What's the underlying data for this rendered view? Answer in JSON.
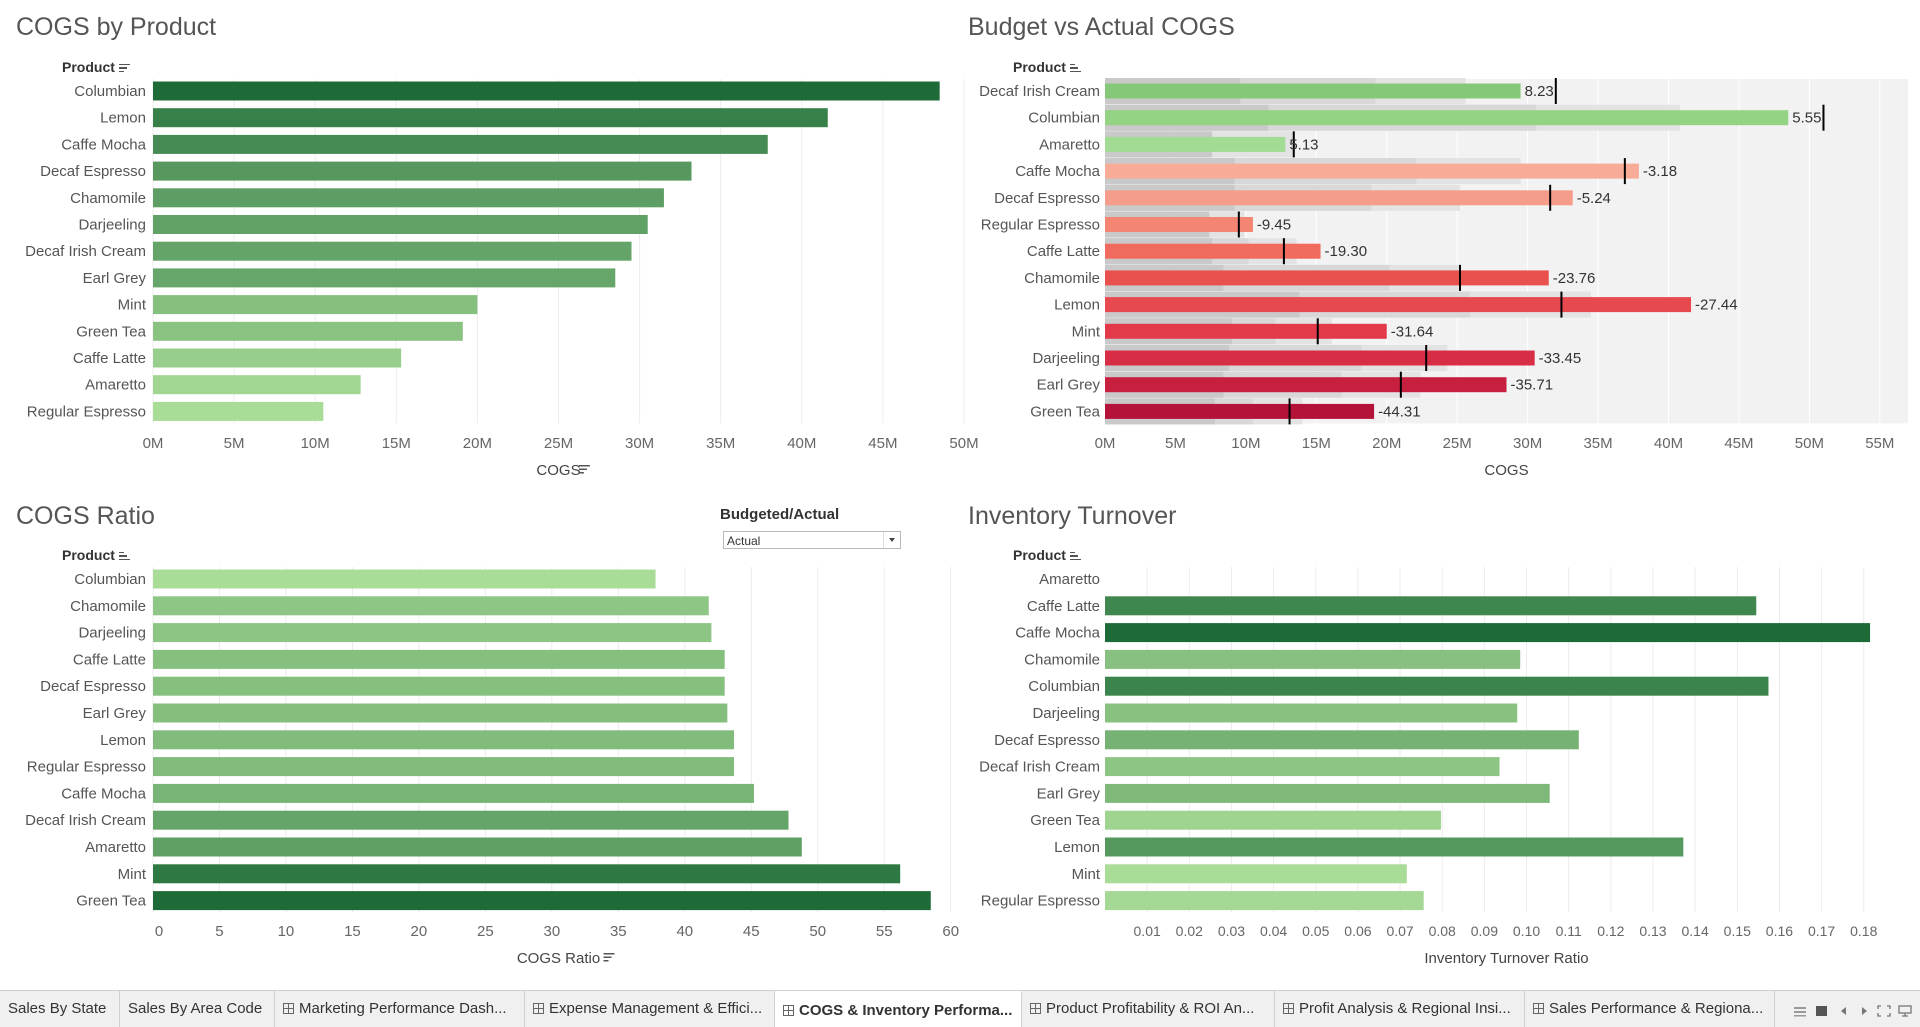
{
  "colors": {
    "green_dark": "#1e6b38",
    "green_light": "#a9dc97",
    "red_dark": "#b5123a",
    "red_light": "#f8ac98",
    "gray_band": "#f2f2f2"
  },
  "chart_data": [
    {
      "id": "cogs_by_product",
      "type": "bar",
      "orientation": "horizontal",
      "title": "COGS by Product",
      "row_header": "Product",
      "xlabel": "COGS",
      "xlim": [
        0,
        50
      ],
      "tick_labels": [
        "0M",
        "5M",
        "10M",
        "15M",
        "20M",
        "25M",
        "30M",
        "35M",
        "40M",
        "45M",
        "50M"
      ],
      "categories": [
        "Columbian",
        "Lemon",
        "Caffe Mocha",
        "Decaf Espresso",
        "Chamomile",
        "Darjeeling",
        "Decaf Irish Cream",
        "Earl Grey",
        "Mint",
        "Green Tea",
        "Caffe Latte",
        "Amaretto",
        "Regular Espresso"
      ],
      "values": [
        48.5,
        41.6,
        37.9,
        33.2,
        31.5,
        30.5,
        29.5,
        28.5,
        20.0,
        19.1,
        15.3,
        12.8,
        10.5
      ],
      "unit": "M",
      "grid": true
    },
    {
      "id": "budget_vs_actual",
      "type": "bar",
      "orientation": "horizontal",
      "title": "Budget vs Actual COGS",
      "row_header": "Product",
      "xlabel": "COGS",
      "xlim": [
        0,
        57
      ],
      "tick_labels": [
        "0M",
        "5M",
        "10M",
        "15M",
        "20M",
        "25M",
        "30M",
        "35M",
        "40M",
        "45M",
        "50M",
        "55M"
      ],
      "categories": [
        "Decaf Irish Cream",
        "Columbian",
        "Amaretto",
        "Caffe Mocha",
        "Decaf Espresso",
        "Regular Espresso",
        "Caffe Latte",
        "Chamomile",
        "Lemon",
        "Mint",
        "Darjeeling",
        "Earl Grey",
        "Green Tea"
      ],
      "actual": [
        29.5,
        48.5,
        12.8,
        37.9,
        33.2,
        10.5,
        15.3,
        31.5,
        41.6,
        20.0,
        30.5,
        28.5,
        19.1
      ],
      "budget": [
        32.0,
        51.0,
        13.4,
        36.9,
        31.6,
        9.5,
        12.7,
        25.2,
        32.4,
        15.1,
        22.8,
        21.0,
        13.1
      ],
      "variance_labels": [
        "8.23",
        "5.55",
        "5.13",
        "-3.18",
        "-5.24",
        "-9.45",
        "-19.30",
        "-23.76",
        "-27.44",
        "-31.64",
        "-33.45",
        "-35.71",
        "-44.31"
      ],
      "bands": [
        [
          9.6,
          19.2,
          25.6
        ],
        [
          11.6,
          30.6,
          40.8
        ],
        [
          7.6,
          7.6,
          13.4
        ],
        [
          9.2,
          22.1,
          29.5
        ],
        [
          9.2,
          18.9,
          25.2
        ],
        [
          7.4,
          7.4,
          9.9
        ],
        [
          7.6,
          10.2,
          13.6
        ],
        [
          8.4,
          20.2,
          25.2
        ],
        [
          13.8,
          25.9,
          34.5
        ],
        [
          9.0,
          12.1,
          16.1
        ],
        [
          8.8,
          18.2,
          24.3
        ],
        [
          8.4,
          16.8,
          22.4
        ],
        [
          7.8,
          10.5,
          14.0
        ]
      ],
      "grid": true
    },
    {
      "id": "cogs_ratio",
      "type": "bar",
      "orientation": "horizontal",
      "title": "COGS Ratio",
      "row_header": "Product",
      "xlabel": "COGS Ratio",
      "xlim": [
        0,
        61
      ],
      "tick_labels": [
        "0",
        "5",
        "10",
        "15",
        "20",
        "25",
        "30",
        "35",
        "40",
        "45",
        "50",
        "55",
        "60"
      ],
      "categories": [
        "Columbian",
        "Chamomile",
        "Darjeeling",
        "Caffe Latte",
        "Decaf Espresso",
        "Earl Grey",
        "Lemon",
        "Regular Espresso",
        "Caffe Mocha",
        "Decaf Irish Cream",
        "Amaretto",
        "Mint",
        "Green Tea"
      ],
      "values": [
        37.8,
        41.8,
        42.0,
        43.0,
        43.0,
        43.2,
        43.7,
        43.7,
        45.2,
        47.8,
        48.8,
        56.2,
        58.5
      ],
      "grid": true
    },
    {
      "id": "inventory_turnover",
      "type": "bar",
      "orientation": "horizontal",
      "title": "Inventory Turnover",
      "row_header": "Product",
      "xlabel": "Inventory Turnover Ratio",
      "xlim": [
        0,
        0.1905
      ],
      "tick_labels": [
        "0.01",
        "0.02",
        "0.03",
        "0.04",
        "0.05",
        "0.06",
        "0.07",
        "0.08",
        "0.09",
        "0.10",
        "0.11",
        "0.12",
        "0.13",
        "0.14",
        "0.15",
        "0.16",
        "0.17",
        "0.18"
      ],
      "categories": [
        "Amaretto",
        "Caffe Latte",
        "Caffe Mocha",
        "Chamomile",
        "Columbian",
        "Darjeeling",
        "Decaf Espresso",
        "Decaf Irish Cream",
        "Earl Grey",
        "Green Tea",
        "Lemon",
        "Mint",
        "Regular Espresso"
      ],
      "values": [
        0,
        0.1545,
        0.1815,
        0.0985,
        0.1574,
        0.0978,
        0.1124,
        0.0936,
        0.1055,
        0.0797,
        0.1372,
        0.0716,
        0.0756
      ],
      "grid": true
    }
  ],
  "filter": {
    "label": "Budgeted/Actual",
    "selected": "Actual"
  },
  "tabs": [
    {
      "label": "Sales By State",
      "icon": false,
      "active": false
    },
    {
      "label": "Sales By Area Code",
      "icon": false,
      "active": false
    },
    {
      "label": "Marketing Performance Dash...",
      "icon": true,
      "active": false
    },
    {
      "label": "Expense Management & Effici...",
      "icon": true,
      "active": false
    },
    {
      "label": "COGS & Inventory Performa...",
      "icon": true,
      "active": true
    },
    {
      "label": "Product Profitability & ROI An...",
      "icon": true,
      "active": false
    },
    {
      "label": "Profit Analysis & Regional Insi...",
      "icon": true,
      "active": false
    },
    {
      "label": "Sales Performance & Regiona...",
      "icon": true,
      "active": false
    }
  ],
  "nav_icons": [
    "list-view-icon",
    "grid-view-icon",
    "prev-sheet-icon",
    "next-sheet-icon",
    "fit-icon",
    "present-icon"
  ]
}
